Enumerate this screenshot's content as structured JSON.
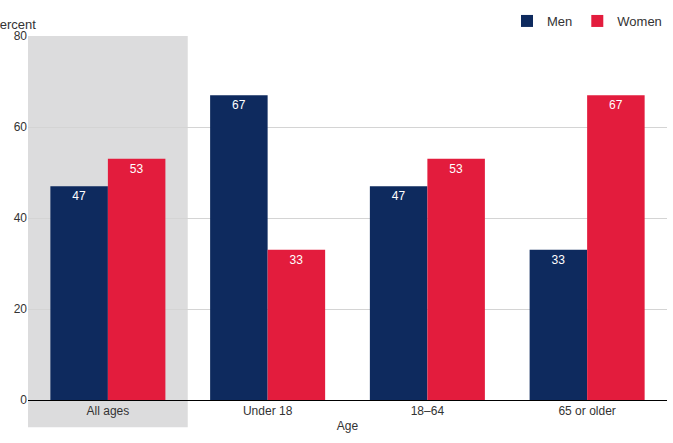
{
  "chart_data": {
    "type": "bar",
    "categories": [
      "All ages",
      "Under 18",
      "18–64",
      "65 or older"
    ],
    "series": [
      {
        "name": "Men",
        "color": "#0e2a5e",
        "values": [
          47,
          67,
          47,
          33
        ]
      },
      {
        "name": "Women",
        "color": "#e31c3d",
        "values": [
          53,
          33,
          53,
          67
        ]
      }
    ],
    "x_label": "Age",
    "y_label": "Percent",
    "ylim": [
      0,
      80
    ],
    "yticks": [
      0,
      20,
      40,
      60,
      80
    ],
    "grid": true,
    "legend": "top right",
    "data_labels": true
  }
}
